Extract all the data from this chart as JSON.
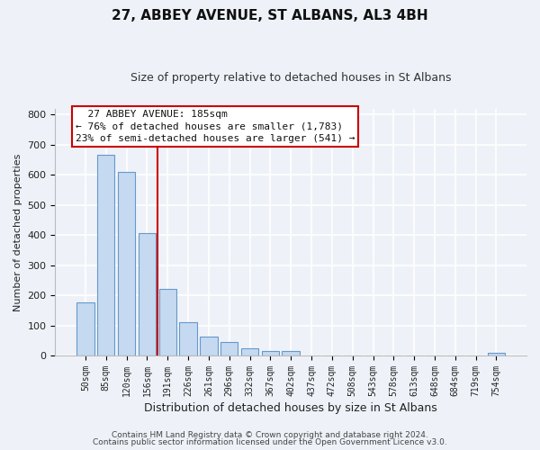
{
  "title": "27, ABBEY AVENUE, ST ALBANS, AL3 4BH",
  "subtitle": "Size of property relative to detached houses in St Albans",
  "bar_labels": [
    "50sqm",
    "85sqm",
    "120sqm",
    "156sqm",
    "191sqm",
    "226sqm",
    "261sqm",
    "296sqm",
    "332sqm",
    "367sqm",
    "402sqm",
    "437sqm",
    "472sqm",
    "508sqm",
    "543sqm",
    "578sqm",
    "613sqm",
    "648sqm",
    "684sqm",
    "719sqm",
    "754sqm"
  ],
  "bar_values": [
    175,
    665,
    610,
    405,
    220,
    110,
    63,
    46,
    25,
    15,
    15,
    0,
    0,
    0,
    0,
    0,
    0,
    0,
    0,
    0,
    8
  ],
  "bar_color": "#c5d9f0",
  "bar_edge_color": "#6699cc",
  "vline_x_index": 4,
  "vline_color": "#cc0000",
  "annotation_title": "27 ABBEY AVENUE: 185sqm",
  "annotation_line1": "← 76% of detached houses are smaller (1,783)",
  "annotation_line2": "23% of semi-detached houses are larger (541) →",
  "annotation_box_edge": "#cc0000",
  "xlabel": "Distribution of detached houses by size in St Albans",
  "ylabel": "Number of detached properties",
  "ylim": [
    0,
    820
  ],
  "yticks": [
    0,
    100,
    200,
    300,
    400,
    500,
    600,
    700,
    800
  ],
  "footer_line1": "Contains HM Land Registry data © Crown copyright and database right 2024.",
  "footer_line2": "Contains public sector information licensed under the Open Government Licence v3.0.",
  "bg_color": "#eef2f8",
  "grid_color": "#ffffff"
}
